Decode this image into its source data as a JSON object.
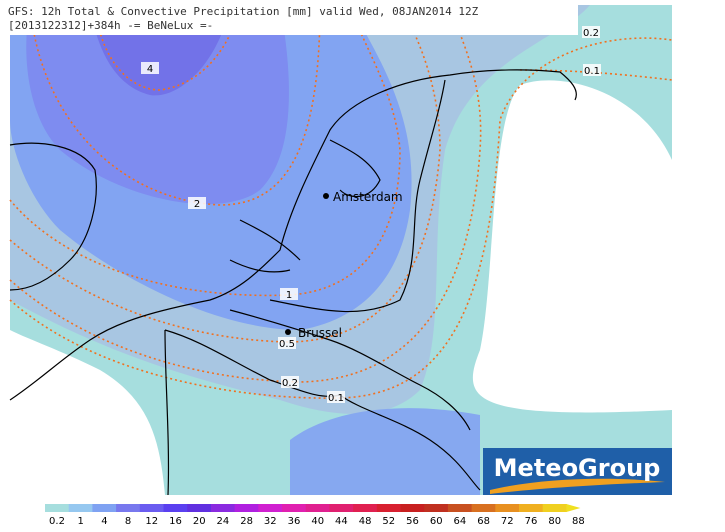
{
  "header": {
    "line1": "GFS: 12h Total & Convective Precipitation [mm] valid Wed, 08JAN2014 12Z",
    "line2": "[2013122312]+384h -= BeNeLux =-"
  },
  "map": {
    "cities": [
      "Amsterdam",
      "Brussel"
    ],
    "contour_labels": [
      "4",
      "2",
      "1",
      "0.5",
      "0.2",
      "0.1",
      "0.2",
      "0.1"
    ]
  },
  "logo": {
    "text": "MeteoGroup"
  },
  "legend": {
    "labels": [
      "0.2",
      "1",
      "4",
      "8",
      "12",
      "16",
      "20",
      "24",
      "28",
      "32",
      "36",
      "40",
      "44",
      "48",
      "52",
      "56",
      "60",
      "64",
      "68",
      "72",
      "76",
      "80",
      "88"
    ]
  }
}
